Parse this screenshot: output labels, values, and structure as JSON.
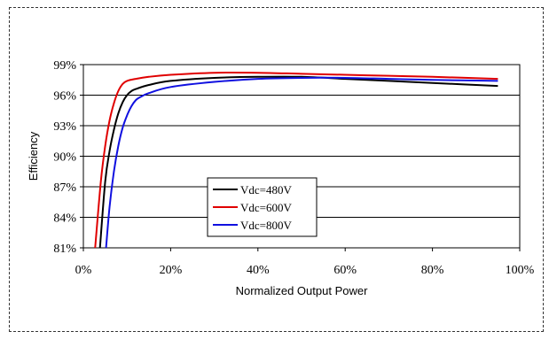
{
  "chart_data": {
    "type": "line",
    "title": "",
    "xlabel": "Normalized Output Power",
    "ylabel": "Efficiency",
    "xlim": [
      0,
      100
    ],
    "ylim": [
      81,
      99
    ],
    "x_ticks": [
      0,
      20,
      40,
      60,
      80,
      100
    ],
    "x_tick_labels": [
      "0%",
      "20%",
      "40%",
      "60%",
      "80%",
      "100%"
    ],
    "y_ticks": [
      81,
      84,
      87,
      90,
      93,
      96,
      99
    ],
    "y_tick_labels": [
      "81%",
      "84%",
      "87%",
      "90%",
      "93%",
      "96%",
      "99%"
    ],
    "grid": "horizontal",
    "legend_position": "center-left",
    "series": [
      {
        "name": "Vdc=480V",
        "color": "#000000",
        "x": [
          3.8,
          5,
          6,
          7,
          8,
          9,
          10,
          11,
          12,
          15,
          20,
          30,
          40,
          50,
          60,
          70,
          80,
          95
        ],
        "y": [
          81,
          87.5,
          90.5,
          92.6,
          94.2,
          95.3,
          96.0,
          96.4,
          96.6,
          97.0,
          97.4,
          97.7,
          97.8,
          97.8,
          97.6,
          97.4,
          97.2,
          96.9
        ]
      },
      {
        "name": "Vdc=600V",
        "color": "#e00000",
        "x": [
          2.7,
          4,
          5,
          6,
          7,
          8,
          9,
          10,
          12,
          15,
          20,
          30,
          40,
          50,
          60,
          70,
          80,
          95
        ],
        "y": [
          81,
          87.5,
          91.0,
          93.5,
          95.2,
          96.4,
          97.1,
          97.4,
          97.6,
          97.8,
          98.0,
          98.2,
          98.2,
          98.1,
          98.0,
          97.9,
          97.8,
          97.6
        ]
      },
      {
        "name": "Vdc=800V",
        "color": "#1010e0",
        "x": [
          5.2,
          6,
          7,
          8,
          9,
          10,
          11,
          12,
          13,
          15,
          20,
          30,
          40,
          50,
          60,
          70,
          80,
          95
        ],
        "y": [
          81,
          85.0,
          88.5,
          91.0,
          92.8,
          94.0,
          94.9,
          95.5,
          95.8,
          96.2,
          96.8,
          97.3,
          97.6,
          97.7,
          97.7,
          97.6,
          97.5,
          97.4
        ]
      }
    ]
  }
}
